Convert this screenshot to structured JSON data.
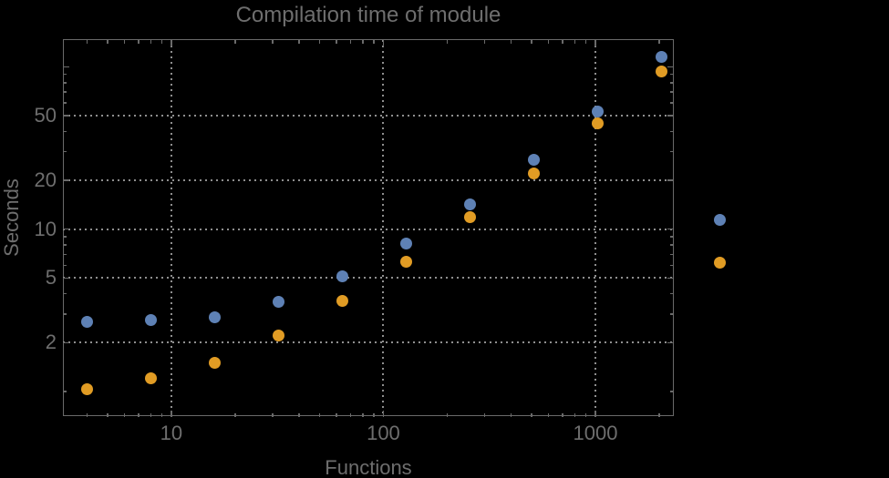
{
  "page": {
    "background": "#000000"
  },
  "chart_data": {
    "type": "scatter",
    "title": "Compilation time of module",
    "xlabel": "Functions",
    "ylabel": "Seconds",
    "x_scale": "log",
    "y_scale": "log",
    "xlim": [
      3.08,
      2344
    ],
    "ylim": [
      0.7,
      147.5
    ],
    "grid": true,
    "grid_style": "dotted",
    "legend_position": "right-outside",
    "x_gridlines": [
      10,
      100,
      1000
    ],
    "y_gridlines": [
      2,
      5,
      10,
      20,
      50
    ],
    "x_ticks": [
      {
        "value": 10,
        "label": "10"
      },
      {
        "value": 100,
        "label": "100"
      },
      {
        "value": 1000,
        "label": "1000"
      }
    ],
    "x_minor_ticks": [
      4,
      5,
      6,
      7,
      8,
      9,
      20,
      30,
      40,
      50,
      60,
      70,
      80,
      90,
      200,
      300,
      400,
      500,
      600,
      700,
      800,
      900,
      2000
    ],
    "y_ticks": [
      {
        "value": 2,
        "label": "2"
      },
      {
        "value": 5,
        "label": "5"
      },
      {
        "value": 10,
        "label": "10"
      },
      {
        "value": 20,
        "label": "20"
      },
      {
        "value": 50,
        "label": "50"
      },
      {
        "value": 100,
        "label": ""
      }
    ],
    "y_minor_ticks": [
      1,
      3,
      4,
      6,
      7,
      8,
      9,
      30,
      40,
      60,
      70,
      80,
      90
    ],
    "series": [
      {
        "name": "series-1-blue",
        "color": "#5e81b5",
        "marker": "circle",
        "points": [
          [
            4,
            2.7
          ],
          [
            8,
            2.75
          ],
          [
            16,
            2.85
          ],
          [
            32,
            3.55
          ],
          [
            64,
            5.1
          ],
          [
            128,
            8.2
          ],
          [
            256,
            14.3
          ],
          [
            512,
            26.7
          ],
          [
            1024,
            53
          ],
          [
            2048,
            115
          ]
        ]
      },
      {
        "name": "series-2-orange",
        "color": "#e19c24",
        "marker": "circle",
        "points": [
          [
            4,
            1.03
          ],
          [
            8,
            1.2
          ],
          [
            16,
            1.5
          ],
          [
            32,
            2.2
          ],
          [
            64,
            3.6
          ],
          [
            128,
            6.3
          ],
          [
            256,
            11.9
          ],
          [
            512,
            22.2
          ],
          [
            1024,
            45
          ],
          [
            2048,
            94
          ]
        ]
      }
    ],
    "legend": {
      "markers": [
        {
          "name": "legend-marker-series-1",
          "color": "#5e81b5"
        },
        {
          "name": "legend-marker-series-2",
          "color": "#e19c24"
        }
      ]
    },
    "colors": {
      "frame": "#6a6a6a",
      "grid": "#8f8f8f",
      "text": "#6e6e6e",
      "background": "#000000"
    }
  }
}
